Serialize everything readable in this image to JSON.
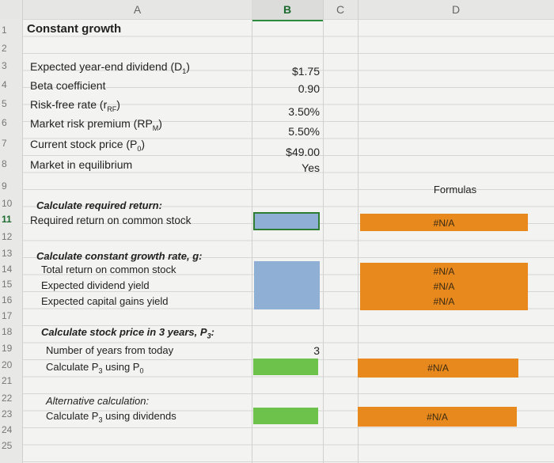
{
  "columns": [
    "A",
    "B",
    "C",
    "D"
  ],
  "row_numbers": [
    "1",
    "2",
    "3",
    "4",
    "5",
    "6",
    "7",
    "8",
    "9",
    "10",
    "11",
    "12",
    "13",
    "14",
    "15",
    "16",
    "17",
    "18",
    "19",
    "20",
    "21",
    "22",
    "23",
    "24",
    "25"
  ],
  "title": "Constant growth",
  "inputs": {
    "dividend_label": "Expected year-end dividend (D",
    "dividend_sub": "1",
    "dividend_value": "$1.75",
    "beta_label": "Beta coefficient",
    "beta_value": "0.90",
    "rf_label": "Risk-free rate (r",
    "rf_sub": "RF",
    "rf_value": "3.50%",
    "mrp_label": "Market risk premium (RP",
    "mrp_sub": "M",
    "mrp_value": "5.50%",
    "price_label": "Current stock price (P",
    "price_sub": "0",
    "price_value": "$49.00",
    "equilibrium_label": "Market in equilibrium",
    "equilibrium_value": "Yes"
  },
  "formulas_header": "Formulas",
  "section_required": {
    "heading": "Calculate required return:",
    "row_label": "Required return on common stock",
    "formula": "#N/A"
  },
  "section_growth": {
    "heading": "Calculate constant growth rate, g:",
    "rows": [
      {
        "label": "Total return on common stock",
        "formula": "#N/A"
      },
      {
        "label": "Expected dividend yield",
        "formula": "#N/A"
      },
      {
        "label": "Expected capital gains yield",
        "formula": "#N/A"
      }
    ]
  },
  "section_price": {
    "heading": "Calculate stock price in 3 years, P",
    "heading_sub": "3",
    "years_label": "Number of years from today",
    "years_value": "3",
    "calc_label": "Calculate P",
    "calc_sub": "3",
    "calc_suffix": " using P",
    "calc_suffix_sub": "0",
    "formula": "#N/A"
  },
  "section_alt": {
    "heading": "Alternative calculation:",
    "calc_label": "Calculate P",
    "calc_sub": "3",
    "calc_suffix": " using dividends",
    "formula": "#N/A"
  },
  "colors": {
    "input_blue": "#8fb0d4",
    "input_green": "#6cc24a",
    "formula_orange": "#e8891e"
  }
}
